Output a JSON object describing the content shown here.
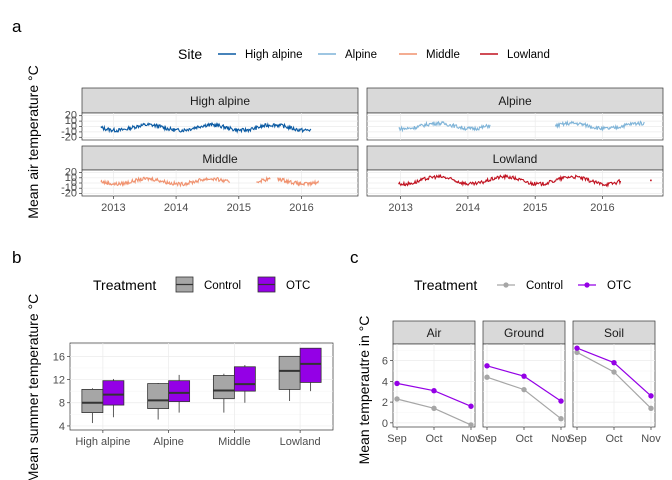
{
  "colors": {
    "high_alpine": "#0a5aa3",
    "alpine": "#7fb4d8",
    "middle": "#f0926f",
    "lowland": "#c0101e",
    "control": "#a6a6a6",
    "otc": "#9400e6"
  },
  "panel_labels": {
    "a": "a",
    "b": "b",
    "c": "c"
  },
  "chart_data": [
    {
      "type": "line",
      "panel": "a",
      "legend": {
        "title": "Site",
        "position": "top",
        "items": [
          "High alpine",
          "Alpine",
          "Middle",
          "Lowland"
        ]
      },
      "ylabel": "Mean air temperature °C",
      "yticks": [
        "20",
        "10",
        "0",
        "-10",
        "-20"
      ],
      "ylim": [
        -25,
        25
      ],
      "xticks": [
        "2013",
        "2014",
        "2015",
        "2016"
      ],
      "xlim": [
        2012.5,
        2016.9
      ],
      "facets": [
        {
          "label": "High alpine",
          "segments": [
            [
              2012.8,
              2016.15
            ]
          ],
          "mean": -2,
          "amp": 5
        },
        {
          "label": "Alpine",
          "segments": [
            [
              2012.97,
              2014.33
            ],
            [
              2015.3,
              2016.62
            ]
          ],
          "mean": 1,
          "amp": 5
        },
        {
          "label": "Middle",
          "segments": [
            [
              2012.8,
              2014.85
            ],
            [
              2015.28,
              2015.5
            ],
            [
              2015.62,
              2016.27
            ]
          ],
          "mean": 3,
          "amp": 5
        },
        {
          "label": "Lowland",
          "segments": [
            [
              2012.97,
              2016.27
            ]
          ],
          "mean": 5,
          "amp": 7,
          "extra_point": [
            2016.72,
            5
          ]
        }
      ]
    },
    {
      "type": "box",
      "panel": "b",
      "legend": {
        "title": "Treatment",
        "position": "top",
        "items": [
          "Control",
          "OTC"
        ]
      },
      "ylabel": "Mean summer temperature °C",
      "categories": [
        "High alpine",
        "Alpine",
        "Middle",
        "Lowland"
      ],
      "yticks": [
        4,
        8,
        12,
        16
      ],
      "ylim": [
        3.3,
        18.3
      ],
      "series": [
        {
          "name": "Control",
          "boxes": [
            {
              "min": 4.5,
              "q1": 6.3,
              "median": 8.0,
              "q3": 10.3,
              "max": 10.5
            },
            {
              "min": 5.1,
              "q1": 7.0,
              "median": 8.4,
              "q3": 11.3,
              "max": 11.4
            },
            {
              "min": 6.3,
              "q1": 8.7,
              "median": 10.1,
              "q3": 12.7,
              "max": 13.0
            },
            {
              "min": 8.3,
              "q1": 10.3,
              "median": 13.5,
              "q3": 16.0,
              "max": 16.0
            }
          ]
        },
        {
          "name": "OTC",
          "boxes": [
            {
              "min": 5.5,
              "q1": 7.6,
              "median": 9.4,
              "q3": 11.8,
              "max": 12.1
            },
            {
              "min": 6.3,
              "q1": 8.2,
              "median": 9.7,
              "q3": 11.8,
              "max": 12.8
            },
            {
              "min": 8.0,
              "q1": 10.0,
              "median": 11.2,
              "q3": 14.2,
              "max": 14.5
            },
            {
              "min": 10.0,
              "q1": 11.5,
              "median": 14.7,
              "q3": 17.4,
              "max": 17.4
            }
          ]
        }
      ]
    },
    {
      "type": "line",
      "panel": "c",
      "legend": {
        "title": "Treatment",
        "position": "top",
        "items": [
          "Control",
          "OTC"
        ]
      },
      "ylabel": "Mean temperautre in °C",
      "categories": [
        "Sep",
        "Oct",
        "Nov"
      ],
      "yticks": [
        0,
        2,
        4,
        6
      ],
      "ylim": [
        -0.4,
        7.6
      ],
      "facets": [
        {
          "label": "Air",
          "series": [
            {
              "name": "Control",
              "values": [
                2.3,
                1.4,
                -0.2
              ]
            },
            {
              "name": "OTC",
              "values": [
                3.8,
                3.1,
                1.6
              ]
            }
          ]
        },
        {
          "label": "Ground",
          "series": [
            {
              "name": "Control",
              "values": [
                4.4,
                3.2,
                0.4
              ]
            },
            {
              "name": "OTC",
              "values": [
                5.5,
                4.5,
                2.1
              ]
            }
          ]
        },
        {
          "label": "Soil",
          "series": [
            {
              "name": "Control",
              "values": [
                6.8,
                4.9,
                1.4
              ]
            },
            {
              "name": "OTC",
              "values": [
                7.2,
                5.8,
                2.6
              ]
            }
          ]
        }
      ]
    }
  ]
}
